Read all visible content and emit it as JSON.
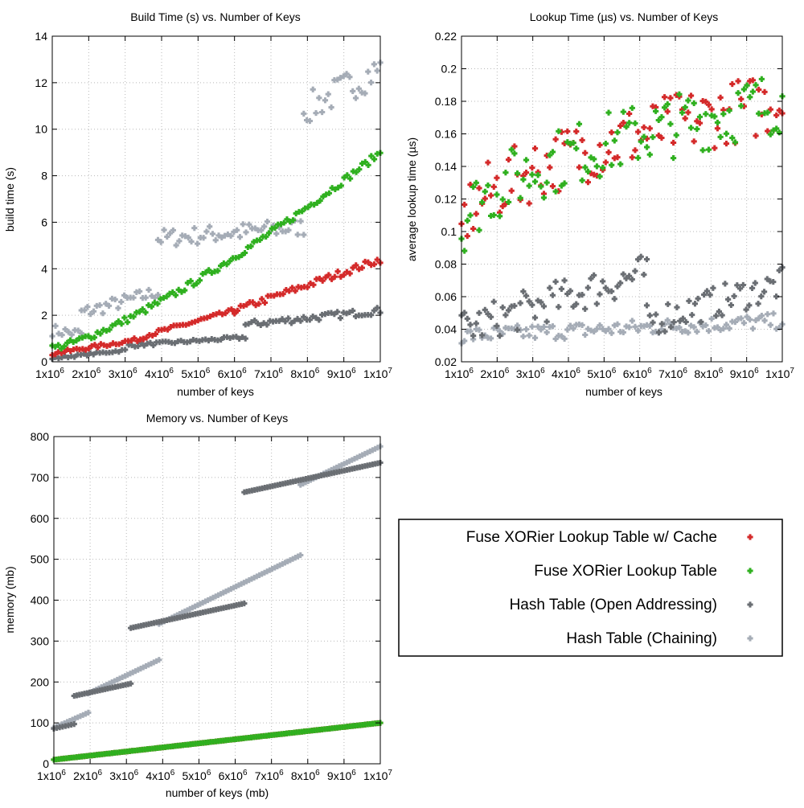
{
  "series_meta": [
    {
      "key": "fuse_cache",
      "name": "Fuse XORier Lookup Table w/ Cache",
      "color": "#d42a2a"
    },
    {
      "key": "fuse",
      "name": "Fuse XORier Lookup Table",
      "color": "#2fb01f"
    },
    {
      "key": "hash_open",
      "name": "Hash Table (Open Addressing)",
      "color": "#6a6e73"
    },
    {
      "key": "hash_chain",
      "name": "Hash Table (Chaining)",
      "color": "#a5acb6"
    }
  ],
  "x_ticks": [
    {
      "base": "1x10",
      "exp": "6"
    },
    {
      "base": "2x10",
      "exp": "6"
    },
    {
      "base": "3x10",
      "exp": "6"
    },
    {
      "base": "4x10",
      "exp": "6"
    },
    {
      "base": "5x10",
      "exp": "6"
    },
    {
      "base": "6x10",
      "exp": "6"
    },
    {
      "base": "7x10",
      "exp": "6"
    },
    {
      "base": "8x10",
      "exp": "6"
    },
    {
      "base": "9x10",
      "exp": "6"
    },
    {
      "base": "1x10",
      "exp": "7"
    }
  ],
  "chart_data": [
    {
      "type": "scatter",
      "id": "build",
      "title": "Build Time (s) vs. Number of Keys",
      "xlabel": "number of keys",
      "ylabel": "build time (s)",
      "xlim": [
        1000000,
        10000000
      ],
      "ylim": [
        0,
        14
      ],
      "y_ticks": [
        "0",
        "2",
        "4",
        "6",
        "8",
        "10",
        "12",
        "14"
      ],
      "series": [
        {
          "key": "fuse_cache",
          "name": "Fuse XORier Lookup Table w/ Cache",
          "segments": [
            {
              "x0": 1000000,
              "x1": 3500000,
              "y0": 0.35,
              "y1": 1.0,
              "noise": 0.08
            },
            {
              "x0": 3500000,
              "x1": 6000000,
              "y0": 1.1,
              "y1": 2.2,
              "noise": 0.1
            },
            {
              "x0": 6000000,
              "x1": 10000000,
              "y0": 2.2,
              "y1": 4.4,
              "noise": 0.15
            }
          ]
        },
        {
          "key": "fuse",
          "name": "Fuse XORier Lookup Table",
          "segments": [
            {
              "x0": 1000000,
              "x1": 10000000,
              "y0": 0.6,
              "y1": 9.0,
              "curve": 1.3,
              "noise": 0.15
            }
          ]
        },
        {
          "key": "hash_open",
          "name": "Hash Table (Open Addressing)",
          "segments": [
            {
              "x0": 1000000,
              "x1": 3000000,
              "y0": 0.15,
              "y1": 0.5,
              "noise": 0.05
            },
            {
              "x0": 3100000,
              "x1": 6300000,
              "y0": 0.7,
              "y1": 1.05,
              "noise": 0.07
            },
            {
              "x0": 6300000,
              "x1": 10000000,
              "y0": 1.6,
              "y1": 2.2,
              "noise": 0.15
            }
          ]
        },
        {
          "key": "hash_chain",
          "name": "Hash Table (Chaining)",
          "segments": [
            {
              "x0": 1000000,
              "x1": 1800000,
              "y0": 1.35,
              "y1": 1.2,
              "noise": 0.25
            },
            {
              "x0": 1800000,
              "x1": 3900000,
              "y0": 2.1,
              "y1": 3.0,
              "noise": 0.3
            },
            {
              "x0": 3900000,
              "x1": 7900000,
              "y0": 5.3,
              "y1": 5.8,
              "noise": 0.4
            },
            {
              "x0": 7900000,
              "x1": 10000000,
              "y0": 10.8,
              "y1": 12.6,
              "noise": 0.7
            }
          ]
        }
      ]
    },
    {
      "type": "scatter",
      "id": "lookup",
      "title": "Lookup Time (µs) vs. Number of Keys",
      "xlabel": "number of keys",
      "ylabel": "average lookup time (µs)",
      "xlim": [
        1000000,
        10000000
      ],
      "ylim": [
        0.02,
        0.22
      ],
      "y_ticks": [
        "0.02",
        "0.04",
        "0.06",
        "0.08",
        "0.1",
        "0.12",
        "0.14",
        "0.16",
        "0.18",
        "0.2",
        "0.22"
      ],
      "series": [
        {
          "key": "fuse_cache",
          "name": "Fuse XORier Lookup Table w/ Cache",
          "segments": [
            {
              "x0": 1000000,
              "x1": 10000000,
              "y0": 0.1,
              "y1": 0.18,
              "curve": 0.5,
              "noise": 0.02
            }
          ]
        },
        {
          "key": "fuse",
          "name": "Fuse XORier Lookup Table",
          "segments": [
            {
              "x0": 1000000,
              "x1": 10000000,
              "y0": 0.1,
              "y1": 0.18,
              "curve": 0.5,
              "noise": 0.02
            }
          ]
        },
        {
          "key": "hash_open",
          "name": "Hash Table (Open Addressing)",
          "segments": [
            {
              "x0": 1000000,
              "x1": 6200000,
              "y0": 0.04,
              "y1": 0.075,
              "noise": 0.012
            },
            {
              "x0": 6200000,
              "x1": 10000000,
              "y0": 0.045,
              "y1": 0.068,
              "noise": 0.01
            }
          ]
        },
        {
          "key": "hash_chain",
          "name": "Hash Table (Chaining)",
          "segments": [
            {
              "x0": 1000000,
              "x1": 10000000,
              "y0": 0.036,
              "y1": 0.045,
              "noise": 0.005
            }
          ]
        }
      ]
    },
    {
      "type": "scatter",
      "id": "memory",
      "title": "Memory vs. Number of Keys",
      "xlabel": "number of keys (mb)",
      "ylabel": "memory (mb)",
      "xlim": [
        1000000,
        10000000
      ],
      "ylim": [
        0,
        800
      ],
      "y_ticks": [
        "0",
        "100",
        "200",
        "300",
        "400",
        "500",
        "600",
        "700",
        "800"
      ],
      "series": [
        {
          "key": "fuse_cache",
          "name": "Fuse XORier Lookup Table w/ Cache",
          "segments": [
            {
              "x0": 1000000,
              "x1": 10000000,
              "y0": 10,
              "y1": 100,
              "noise": 0
            }
          ]
        },
        {
          "key": "fuse",
          "name": "Fuse XORier Lookup Table",
          "segments": [
            {
              "x0": 1000000,
              "x1": 10000000,
              "y0": 10,
              "y1": 100,
              "noise": 0
            }
          ]
        },
        {
          "key": "hash_open",
          "name": "Hash Table (Open Addressing)",
          "segments": [
            {
              "x0": 1000000,
              "x1": 1560000,
              "y0": 86,
              "y1": 97,
              "noise": 0
            },
            {
              "x0": 1560000,
              "x1": 3120000,
              "y0": 166,
              "y1": 196,
              "noise": 0
            },
            {
              "x0": 3120000,
              "x1": 6250000,
              "y0": 332,
              "y1": 392,
              "noise": 0
            },
            {
              "x0": 6250000,
              "x1": 10000000,
              "y0": 664,
              "y1": 736,
              "noise": 0
            }
          ]
        },
        {
          "key": "hash_chain",
          "name": "Hash Table (Chaining)",
          "segments": [
            {
              "x0": 1000000,
              "x1": 1950000,
              "y0": 88,
              "y1": 125,
              "noise": 0
            },
            {
              "x0": 1950000,
              "x1": 3900000,
              "y0": 172,
              "y1": 254,
              "noise": 0
            },
            {
              "x0": 3900000,
              "x1": 7800000,
              "y0": 342,
              "y1": 510,
              "noise": 0
            },
            {
              "x0": 7800000,
              "x1": 10000000,
              "y0": 682,
              "y1": 776,
              "noise": 0
            }
          ]
        }
      ]
    }
  ]
}
